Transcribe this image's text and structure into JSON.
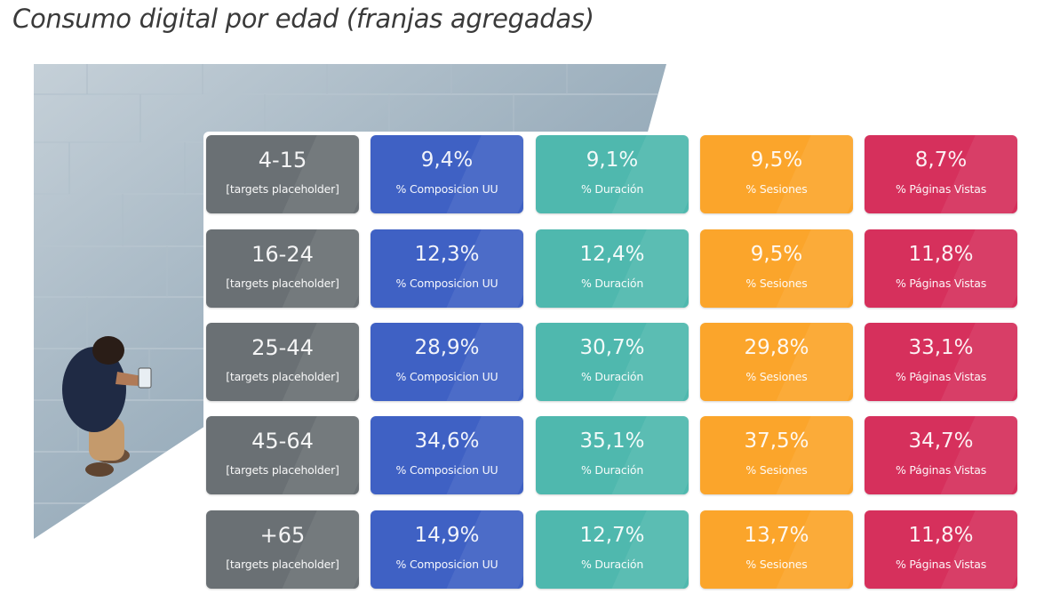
{
  "page": {
    "title": "Consumo digital por edad (franjas agregadas)"
  },
  "photo": {
    "icon": "pedestrian-with-phone-photo"
  },
  "colors": {
    "age": "#6a7074",
    "composicion": "#3f61c4",
    "duracion": "#4fb8ae",
    "sesiones": "#fba52b",
    "paginas": "#d6305c"
  },
  "labels": {
    "age_sub": "[targets placeholder]",
    "composicion": "% Composicion UU",
    "duracion": "% Duración",
    "sesiones": "% Sesiones",
    "paginas": "% Páginas Vistas"
  },
  "rows": [
    {
      "age": "4-15",
      "composicion": "9,4%",
      "duracion": "9,1%",
      "sesiones": "9,5%",
      "paginas": "8,7%"
    },
    {
      "age": "16-24",
      "composicion": "12,3%",
      "duracion": "12,4%",
      "sesiones": "9,5%",
      "paginas": "11,8%"
    },
    {
      "age": "25-44",
      "composicion": "28,9%",
      "duracion": "30,7%",
      "sesiones": "29,8%",
      "paginas": "33,1%"
    },
    {
      "age": "45-64",
      "composicion": "34,6%",
      "duracion": "35,1%",
      "sesiones": "37,5%",
      "paginas": "34,7%"
    },
    {
      "age": "+65",
      "composicion": "14,9%",
      "duracion": "12,7%",
      "sesiones": "13,7%",
      "paginas": "11,8%"
    }
  ],
  "chart_data": {
    "type": "table",
    "title": "Consumo digital por edad (franjas agregadas)",
    "row_headers": [
      "4-15",
      "16-24",
      "25-44",
      "45-64",
      "+65"
    ],
    "row_subtitle": "[targets placeholder]",
    "columns": [
      "% Composicion UU",
      "% Duración",
      "% Sesiones",
      "% Páginas Vistas"
    ],
    "values": [
      [
        9.4,
        9.1,
        9.5,
        8.7
      ],
      [
        12.3,
        12.4,
        9.5,
        11.8
      ],
      [
        28.9,
        30.7,
        29.8,
        33.1
      ],
      [
        34.6,
        35.1,
        37.5,
        34.7
      ],
      [
        14.9,
        12.7,
        13.7,
        11.8
      ]
    ]
  }
}
